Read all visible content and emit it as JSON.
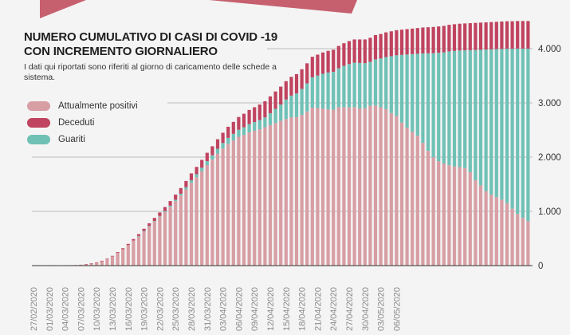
{
  "colors": {
    "positivi": "#d79ea4",
    "deceduti": "#c0435f",
    "guariti": "#6fc1b6",
    "decoration": "#c6606f",
    "grid": "#bdbdbd",
    "axis": "#333333",
    "tick_text": "#8a8a8a"
  },
  "header": {
    "title_line1": "NUMERO CUMULATIVO DI CASI DI COVID -19",
    "title_line2": "CON INCREMENTO GIORNALIERO",
    "subtitle": "I dati qui riportati sono riferiti al giorno di caricamento delle schede a sistema."
  },
  "legend": [
    {
      "label": "Attualmente positivi",
      "color": "#d79ea4"
    },
    {
      "label": "Deceduti",
      "color": "#c0435f"
    },
    {
      "label": "Guariti",
      "color": "#6fc1b6"
    }
  ],
  "chart_data": {
    "type": "bar",
    "stacked": true,
    "grid": true,
    "legend_placement": "top-left",
    "ylim": [
      0,
      4500
    ],
    "y_ticks": [
      0,
      1000,
      2000,
      3000,
      4000
    ],
    "y_tick_labels": [
      "0",
      "1.000",
      "2.000",
      "3.000",
      "4.000"
    ],
    "x_tick_every": 3,
    "x_tick_labels": [
      "27/02/2020",
      "01/03/2020",
      "04/03/2020",
      "07/03/2020",
      "10/03/2020",
      "13/03/2020",
      "16/03/2020",
      "19/03/2020",
      "22/03/2020",
      "25/03/2020",
      "28/03/2020",
      "31/03/2020",
      "03/04/2020",
      "06/04/2020",
      "09/04/2020",
      "12/04/2020",
      "15/04/2020",
      "18/04/2020",
      "21/04/2020",
      "24/04/2020",
      "27/04/2020",
      "30/04/2020",
      "03/05/2020",
      "06/05/2020"
    ],
    "series": [
      {
        "name": "Attualmente positivi",
        "values": [
          0,
          0,
          0,
          1,
          2,
          3,
          5,
          8,
          12,
          18,
          24,
          38,
          57,
          85,
          123,
          170,
          237,
          303,
          378,
          463,
          546,
          638,
          728,
          818,
          905,
          990,
          1085,
          1189,
          1293,
          1405,
          1527,
          1629,
          1741,
          1853,
          1955,
          2065,
          2160,
          2245,
          2310,
          2375,
          2410,
          2458,
          2486,
          2514,
          2552,
          2590,
          2630,
          2670,
          2702,
          2734,
          2736,
          2778,
          2840,
          2912,
          2904,
          2897,
          2880,
          2874,
          2918,
          2922,
          2917,
          2922,
          2897,
          2902,
          2947,
          2953,
          2919,
          2885,
          2811,
          2758,
          2635,
          2542,
          2469,
          2396,
          2263,
          2115,
          1997,
          1924,
          1882,
          1850,
          1828,
          1816,
          1799,
          1722,
          1575,
          1479,
          1373,
          1307,
          1261,
          1215,
          1149,
          1048,
          952,
          881,
          820
        ]
      },
      {
        "name": "Guariti",
        "values": [
          0,
          0,
          0,
          0,
          0,
          0,
          0,
          0,
          0,
          0,
          0,
          0,
          0,
          0,
          0,
          0,
          0,
          0,
          0,
          0,
          1,
          2,
          4,
          6,
          10,
          15,
          20,
          26,
          32,
          40,
          48,
          56,
          64,
          72,
          80,
          90,
          100,
          110,
          120,
          130,
          140,
          150,
          160,
          170,
          180,
          220,
          260,
          300,
          360,
          400,
          440,
          480,
          520,
          560,
          600,
          640,
          680,
          700,
          720,
          760,
          800,
          820,
          840,
          830,
          810,
          850,
          900,
          960,
          1050,
          1120,
          1250,
          1350,
          1430,
          1510,
          1650,
          1800,
          1920,
          2000,
          2050,
          2100,
          2130,
          2150,
          2170,
          2250,
          2400,
          2500,
          2610,
          2680,
          2730,
          2780,
          2850,
          2950,
          3050,
          3120,
          3180
        ]
      },
      {
        "name": "Deceduti",
        "values": [
          0,
          0,
          0,
          0,
          0,
          0,
          0,
          0,
          0,
          0,
          1,
          2,
          3,
          5,
          7,
          10,
          13,
          17,
          22,
          27,
          33,
          40,
          48,
          56,
          65,
          75,
          85,
          95,
          105,
          115,
          125,
          135,
          145,
          155,
          165,
          175,
          190,
          205,
          220,
          235,
          250,
          262,
          274,
          286,
          298,
          310,
          320,
          330,
          338,
          346,
          354,
          362,
          370,
          378,
          386,
          393,
          400,
          406,
          412,
          418,
          423,
          428,
          433,
          438,
          443,
          447,
          451,
          455,
          459,
          462,
          465,
          468,
          471,
          474,
          477,
          480,
          483,
          486,
          488,
          490,
          492,
          494,
          496,
          498,
          500,
          501,
          502,
          503,
          504,
          505,
          506,
          507,
          508,
          509,
          510
        ]
      }
    ]
  }
}
